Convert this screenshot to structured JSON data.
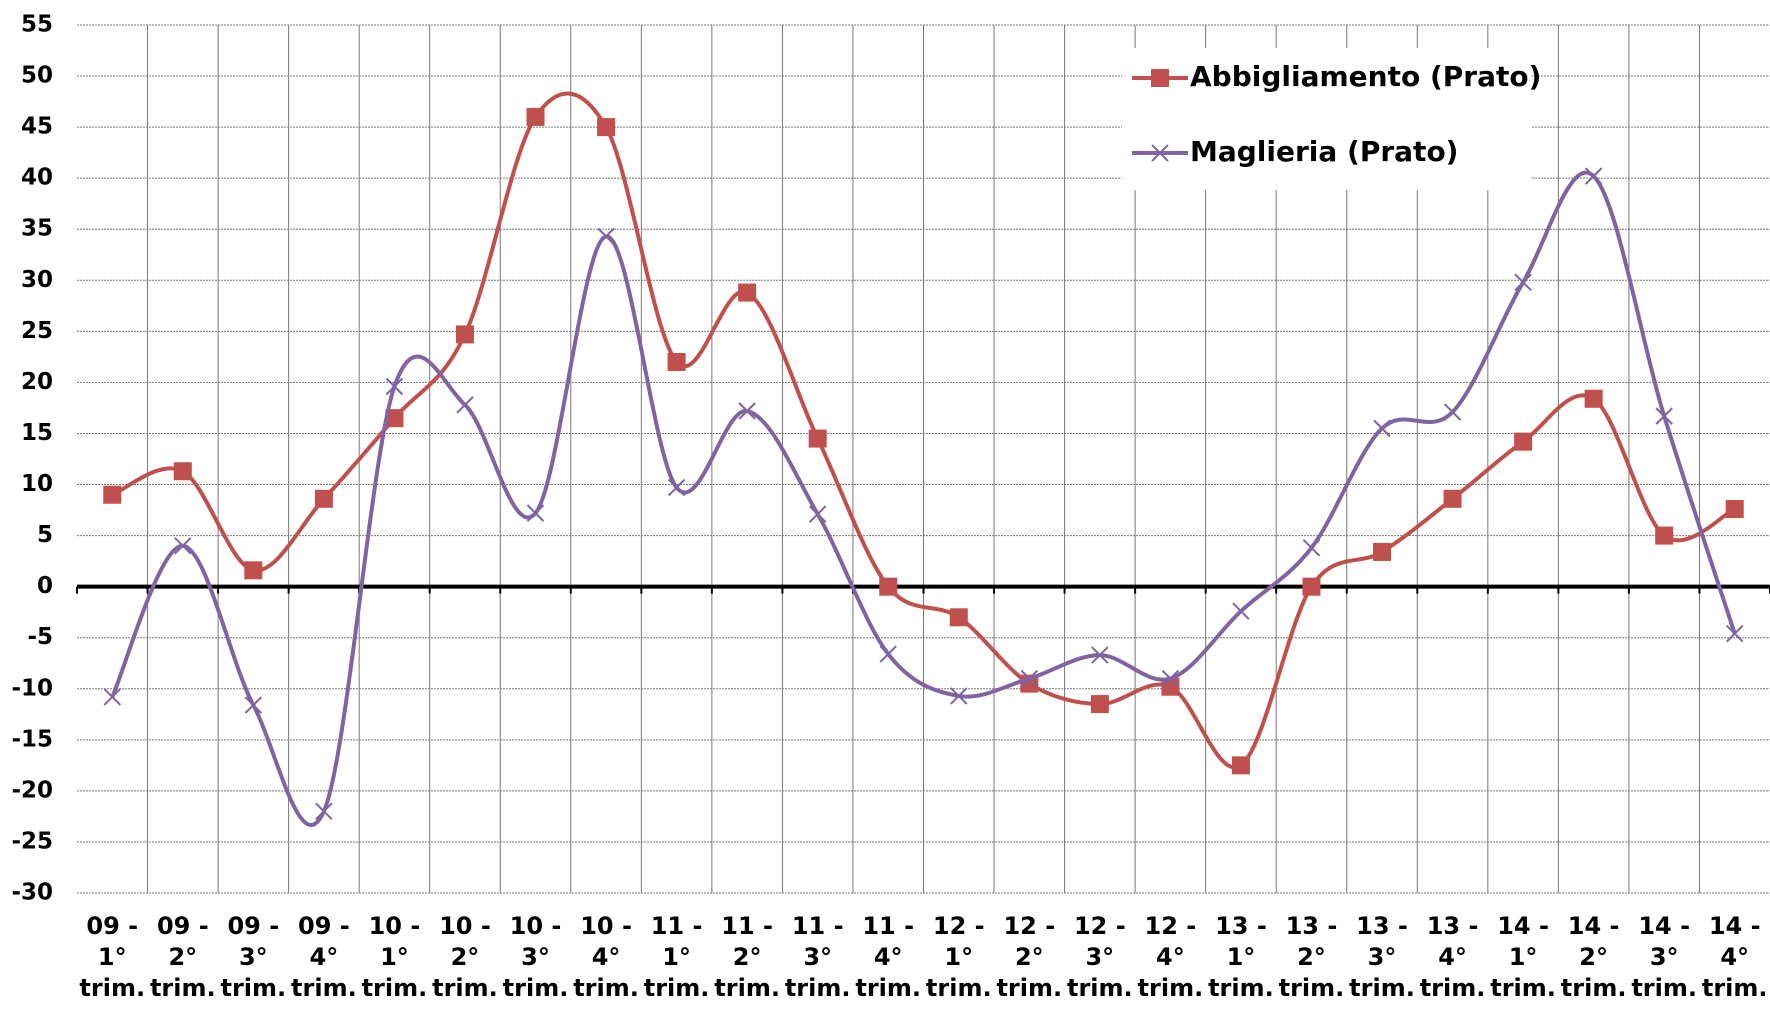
{
  "chart_data": {
    "type": "line",
    "categories": [
      "09 - 1° trim.",
      "09 - 2° trim.",
      "09 - 3° trim.",
      "09 - 4° trim.",
      "10 - 1° trim.",
      "10 - 2° trim.",
      "10 - 3° trim.",
      "10 - 4° trim.",
      "11 - 1° trim.",
      "11 - 2° trim.",
      "11 - 3° trim.",
      "11 - 4° trim.",
      "12 - 1° trim.",
      "12 - 2° trim.",
      "12 - 3° trim.",
      "12 - 4° trim.",
      "13 - 1° trim.",
      "13 - 2° trim.",
      "13 - 3° trim.",
      "13 - 4° trim.",
      "14 - 1° trim.",
      "14 - 2° trim.",
      "14 - 3° trim.",
      "14 - 4° trim."
    ],
    "series": [
      {
        "name": "Abbigliamento (Prato)",
        "color": "#c0504d",
        "marker": "square",
        "values": [
          9,
          11.3,
          1.6,
          8.6,
          16.5,
          24.7,
          46,
          45,
          22,
          28.8,
          14.5,
          0,
          -3,
          -9.5,
          -11.5,
          -9.8,
          -17.5,
          0,
          3.4,
          8.6,
          14.2,
          18.4,
          5,
          7.6
        ]
      },
      {
        "name": "Maglieria (Prato)",
        "color": "#8064a2",
        "marker": "x",
        "values": [
          -10.8,
          4,
          -11.6,
          -22,
          19.6,
          17.8,
          7.2,
          34.3,
          9.7,
          17.2,
          7.1,
          -6.6,
          -10.7,
          -9,
          -6.7,
          -9,
          -2.4,
          3.8,
          15.5,
          17.1,
          29.8,
          40.2,
          16.7,
          -4.6
        ]
      }
    ],
    "ylim": [
      -30,
      55
    ],
    "yticks": [
      -30,
      -25,
      -20,
      -15,
      -10,
      -5,
      0,
      5,
      10,
      15,
      20,
      25,
      30,
      35,
      40,
      45,
      50,
      55
    ],
    "grid": true,
    "smooth": true,
    "legend": "top-right"
  }
}
